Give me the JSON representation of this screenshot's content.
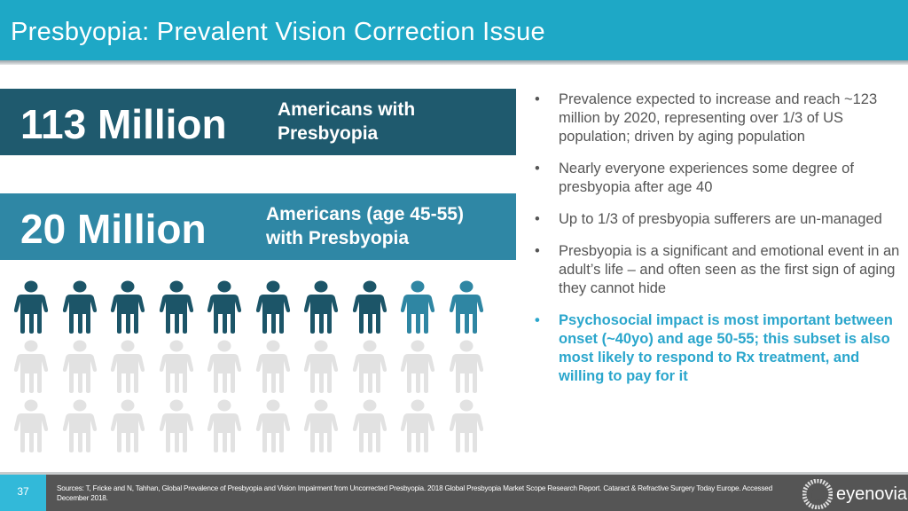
{
  "header": {
    "title": "Presbyopia: Prevalent Vision Correction Issue"
  },
  "stats": [
    {
      "value": "113 Million",
      "label_line1": "Americans with",
      "label_line2": "Presbyopia"
    },
    {
      "value": "20 Million",
      "label_line1": "Americans (age 45-55)",
      "label_line2": "with Presbyopia"
    }
  ],
  "pictogram": {
    "rows": 3,
    "cols": 10,
    "dark_count": 8,
    "highlight_count": 2,
    "colors": {
      "dark": "#1c5568",
      "highlight": "#2f86a3",
      "grey": "#e2e2e2"
    }
  },
  "bullets": [
    {
      "text": "Prevalence expected to increase and reach ~123 million by 2020, representing over 1/3 of US population; driven by aging population"
    },
    {
      "text": "Nearly everyone experiences some degree of presbyopia after age 40"
    },
    {
      "text": "Up to 1/3 of presbyopia sufferers are un-managed"
    },
    {
      "text": "Presbyopia is a significant and emotional event in an adult’s life – and often seen as the first sign of aging they cannot hide"
    },
    {
      "text": "Psychosocial impact is most important between onset (~40yo) and age 50-55; this subset is also most likely to respond to Rx treatment, and willing to pay for it"
    }
  ],
  "bullet_char": "•",
  "footer": {
    "page": "37",
    "sources": "Sources: T, Fricke and N, Tahhan, Global Prevalence of Presbyopia and Vision Impairment from Uncorrected Presbyopia. 2018 Global Presbyopia Market Scope Research Report. Cataract & Refractive Surgery Today Europe. Accessed December 2018.",
    "logo": "eyenovia"
  }
}
